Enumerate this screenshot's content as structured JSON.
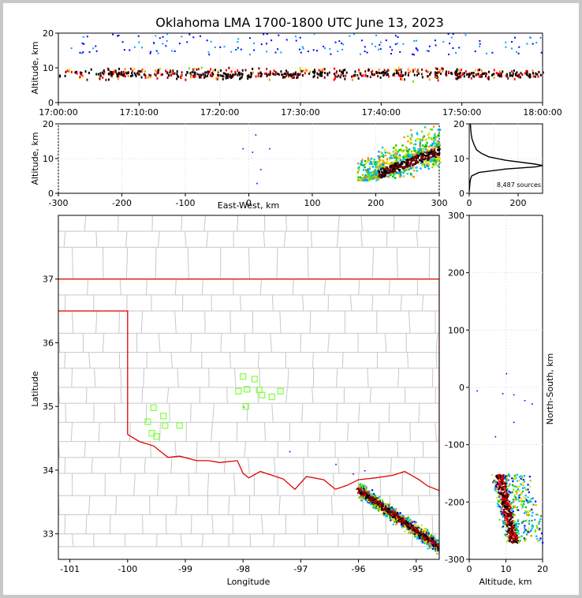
{
  "title": "Oklahoma LMA 1700-1800 UTC June 13, 2023",
  "colors": {
    "state_line": "#e00000",
    "county_line": "#c8c8c8",
    "site_marker": "#7fff3f"
  },
  "chart_data": [
    {
      "id": "time_altitude",
      "type": "scatter",
      "xlabel": "",
      "ylabel": "Altitude, km",
      "x_tick_labels": [
        "17:00:00",
        "17:10:00",
        "17:20:00",
        "17:30:00",
        "17:40:00",
        "17:50:00",
        "18:00:00"
      ],
      "xlim_minutes": [
        0,
        60
      ],
      "ylim": [
        0,
        20
      ],
      "y_ticks": [
        0,
        10,
        20
      ],
      "clusters": [
        {
          "t_start": 0,
          "t_end": 60,
          "alt_low": 6,
          "alt_high": 14,
          "count": 700
        },
        {
          "t_start": 0,
          "t_end": 60,
          "alt_low": 14,
          "alt_high": 20,
          "count": 160
        }
      ]
    },
    {
      "id": "eastwest_altitude",
      "type": "scatter",
      "xlabel": "East-West, km",
      "ylabel": "Altitude, km",
      "xlim": [
        -300,
        300
      ],
      "x_ticks": [
        -300,
        -200,
        -100,
        0,
        100,
        200,
        300
      ],
      "ylim": [
        0,
        20
      ],
      "y_ticks": [
        0,
        10,
        20
      ],
      "stray_points": [
        [
          10,
          17
        ],
        [
          5,
          12
        ],
        [
          -10,
          13
        ],
        [
          18,
          7
        ],
        [
          12,
          3
        ],
        [
          32,
          13
        ]
      ],
      "main_band": {
        "x_start": 170,
        "x_end": 300,
        "alt_start": 5,
        "alt_end": 14,
        "count": 900
      }
    },
    {
      "id": "altitude_histogram",
      "type": "line",
      "xlabel": "",
      "ylabel": "",
      "xlim": [
        0,
        300
      ],
      "x_ticks": [
        0,
        200
      ],
      "ylim": [
        0,
        20
      ],
      "y_ticks": [
        0,
        10,
        20
      ],
      "annotation": "8,487 sources",
      "profile": [
        [
          0,
          0.5
        ],
        [
          2,
          2
        ],
        [
          3,
          3
        ],
        [
          5,
          4
        ],
        [
          10,
          5
        ],
        [
          40,
          6
        ],
        [
          150,
          7
        ],
        [
          270,
          7.6
        ],
        [
          300,
          8
        ],
        [
          270,
          8.4
        ],
        [
          150,
          9.5
        ],
        [
          80,
          10.5
        ],
        [
          50,
          11.5
        ],
        [
          30,
          12.5
        ],
        [
          20,
          14
        ],
        [
          12,
          15.5
        ],
        [
          8,
          17
        ],
        [
          6,
          18.5
        ],
        [
          5,
          20
        ]
      ]
    },
    {
      "id": "plan_view",
      "type": "scatter",
      "xlabel": "Longitude",
      "ylabel": "Latitude",
      "xlim": [
        -101.2,
        -94.6
      ],
      "x_ticks": [
        -101,
        -100,
        -99,
        -98,
        -97,
        -96,
        -95
      ],
      "ylim": [
        32.6,
        38
      ],
      "y_ticks": [
        33,
        34,
        35,
        36,
        37
      ],
      "stations": [
        [
          -99.55,
          34.98
        ],
        [
          -99.38,
          34.85
        ],
        [
          -99.65,
          34.76
        ],
        [
          -99.35,
          34.7
        ],
        [
          -99.58,
          34.58
        ],
        [
          -99.5,
          34.53
        ],
        [
          -99.1,
          34.7
        ],
        [
          -98.0,
          35.47
        ],
        [
          -97.8,
          35.43
        ],
        [
          -98.08,
          35.24
        ],
        [
          -97.93,
          35.27
        ],
        [
          -97.72,
          35.26
        ],
        [
          -97.67,
          35.18
        ],
        [
          -97.5,
          35.15
        ],
        [
          -97.35,
          35.24
        ],
        [
          -97.95,
          35.0
        ]
      ],
      "storm": {
        "lon_start": -96.0,
        "lon_end": -94.6,
        "lat_start": 33.7,
        "lat_end": 32.8,
        "count": 1000
      }
    },
    {
      "id": "altitude_northsouth",
      "type": "scatter",
      "xlabel": "Altitude, km",
      "ylabel": "North-South, km",
      "xlim": [
        0,
        20
      ],
      "x_ticks": [
        0,
        10,
        20
      ],
      "ylim": [
        -300,
        300
      ],
      "y_ticks": [
        -300,
        -200,
        -100,
        0,
        100,
        200,
        300
      ],
      "stray_points": [
        [
          10,
          25
        ],
        [
          12,
          -12
        ],
        [
          9,
          -10
        ],
        [
          15,
          -22
        ],
        [
          2,
          -5
        ],
        [
          7,
          -85
        ],
        [
          12,
          -60
        ],
        [
          17,
          -28
        ]
      ],
      "main_band": {
        "ns_start": -150,
        "ns_end": -270,
        "alt_low": 5,
        "alt_high": 20,
        "count": 700
      }
    }
  ]
}
